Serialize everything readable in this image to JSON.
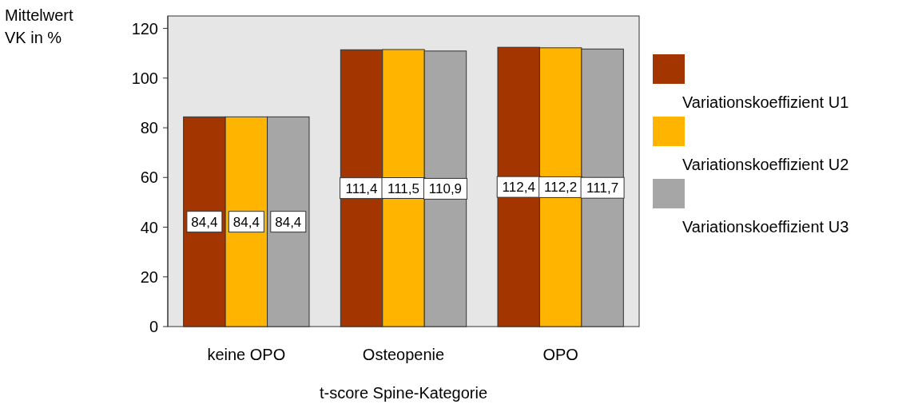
{
  "chart_data": {
    "type": "bar",
    "xlabel": "t-score Spine-Kategorie",
    "ylabel": "Mittelwert\nVK in %",
    "categories": [
      "keine OPO",
      "Osteopenie",
      "OPO"
    ],
    "series": [
      {
        "name": "Variationskoeffizient U1",
        "color": "#a33500",
        "values": [
          84.4,
          111.4,
          112.4
        ],
        "value_labels": [
          "84,4",
          "111,4",
          "112,4"
        ]
      },
      {
        "name": "Variationskoeffizient U2",
        "color": "#ffb400",
        "values": [
          84.4,
          111.5,
          112.2
        ],
        "value_labels": [
          "84,4",
          "111,5",
          "112,2"
        ]
      },
      {
        "name": "Variationskoeffizient U3",
        "color": "#a6a6a6",
        "values": [
          84.4,
          110.9,
          111.7
        ],
        "value_labels": [
          "84,4",
          "110,9",
          "111,7"
        ]
      }
    ],
    "ylim": [
      0,
      125
    ],
    "yticks": [
      0,
      20,
      40,
      60,
      80,
      100,
      120
    ],
    "grid": false,
    "legend": "right"
  }
}
